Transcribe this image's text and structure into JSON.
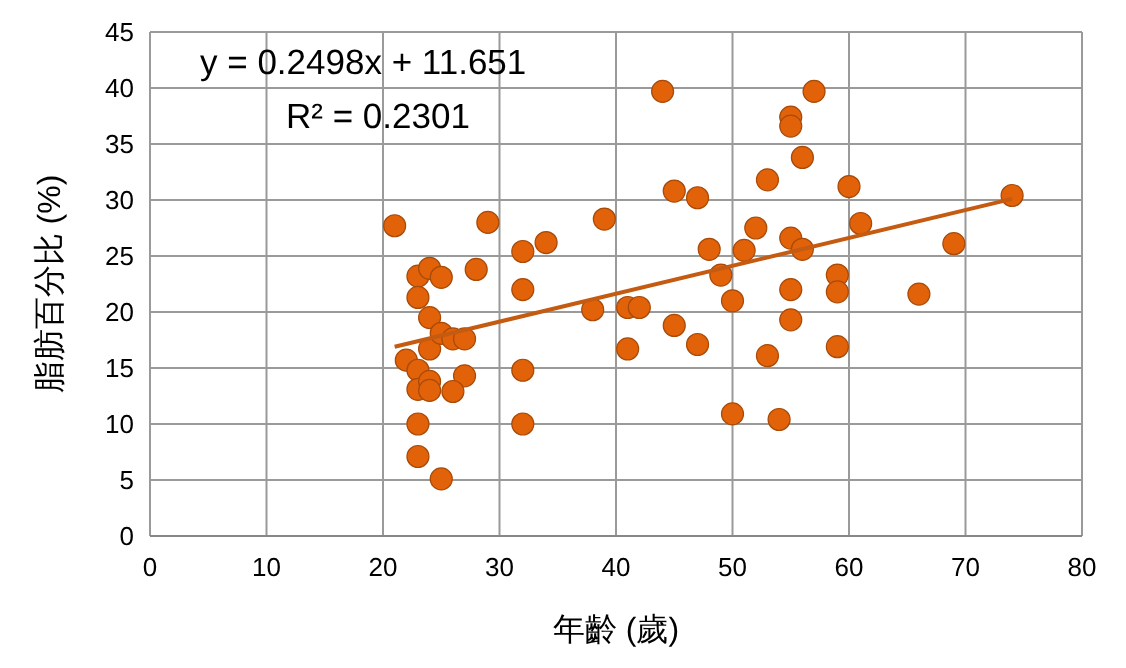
{
  "chart_data": {
    "type": "scatter",
    "xlabel": "年齡 (歲)",
    "ylabel": "脂肪百分比 (%)",
    "xlim": [
      0,
      80
    ],
    "xticks": [
      0,
      10,
      20,
      30,
      40,
      50,
      60,
      70,
      80
    ],
    "ylim": [
      0,
      45
    ],
    "yticks": [
      0,
      5,
      10,
      15,
      20,
      25,
      30,
      35,
      40,
      45
    ],
    "grid": true,
    "annotations": [
      "y = 0.2498x + 11.651",
      "R² = 0.2301"
    ],
    "series": [
      {
        "marker": "circle",
        "color": "#e2620a",
        "x": [
          21,
          29,
          34,
          32,
          32,
          32,
          32,
          28,
          39,
          38,
          41,
          42,
          41,
          44,
          45,
          47,
          45,
          47,
          48,
          49,
          50,
          50,
          51,
          52,
          53,
          53,
          54,
          55,
          55,
          55,
          55,
          55,
          56,
          56,
          57,
          59,
          59,
          59,
          60,
          61,
          66,
          69,
          74,
          22,
          23,
          23,
          23,
          23,
          23,
          23,
          24,
          25,
          24,
          24,
          24,
          24,
          25,
          25,
          26,
          27,
          27,
          26
        ],
        "values": [
          27.7,
          28,
          26.2,
          25.4,
          22,
          14.8,
          10,
          23.8,
          28.3,
          20.2,
          20.4,
          20.4,
          16.7,
          39.7,
          30.8,
          30.2,
          18.8,
          17.1,
          25.6,
          23.3,
          21,
          10.9,
          25.5,
          27.5,
          31.8,
          16.1,
          10.4,
          26.6,
          37.4,
          36.6,
          22,
          19.3,
          33.8,
          25.6,
          39.7,
          23.3,
          21.8,
          16.9,
          31.2,
          27.9,
          21.6,
          26.1,
          30.4,
          15.7,
          23.2,
          21.3,
          14.8,
          13.1,
          10,
          7.1,
          23.9,
          23.1,
          19.5,
          16.7,
          13.8,
          13,
          5.1,
          18.1,
          17.6,
          17.6,
          14.3,
          12.9
        ]
      },
      {
        "type": "line",
        "marker": "none",
        "color": "#c55a11",
        "x": [
          21,
          74
        ],
        "values": [
          16.9,
          30.1
        ]
      }
    ]
  }
}
